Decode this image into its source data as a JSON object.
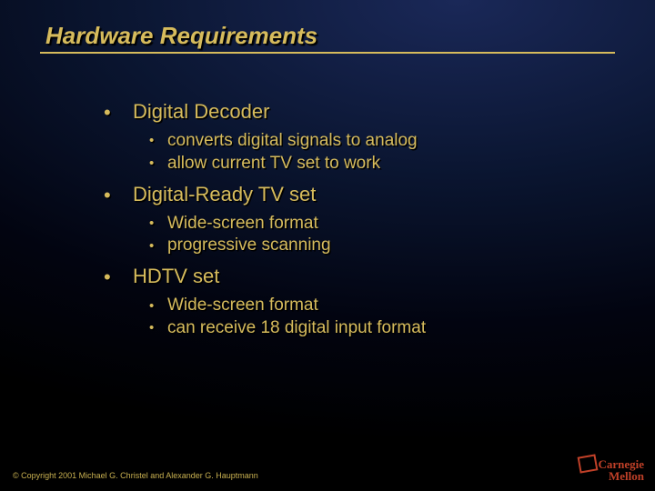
{
  "colors": {
    "accent": "#d6bb5c",
    "logo": "#c04028",
    "background_gradient": [
      "#1a2858",
      "#0a1530",
      "#020410",
      "#000000"
    ]
  },
  "typography": {
    "title_fontsize": 26,
    "title_italic": true,
    "title_bold": true,
    "l1_fontsize": 22,
    "l2_fontsize": 19,
    "copyright_fontsize": 9,
    "logo_fontsize": 13,
    "font_family_body": "Arial",
    "font_family_logo": "Times New Roman"
  },
  "title": "Hardware Requirements",
  "bullets": [
    {
      "label": "Digital Decoder",
      "sub": [
        "converts digital signals to analog",
        "allow current TV set to work"
      ]
    },
    {
      "label": "Digital-Ready TV set",
      "sub": [
        "Wide-screen format",
        "progressive scanning"
      ]
    },
    {
      "label": "HDTV set",
      "sub": [
        "Wide-screen format",
        "can receive 18 digital input format"
      ]
    }
  ],
  "copyright": "© Copyright 2001 Michael G. Christel and Alexander G. Hauptmann",
  "logo": {
    "line1": "Carnegie",
    "line2": "Mellon"
  }
}
